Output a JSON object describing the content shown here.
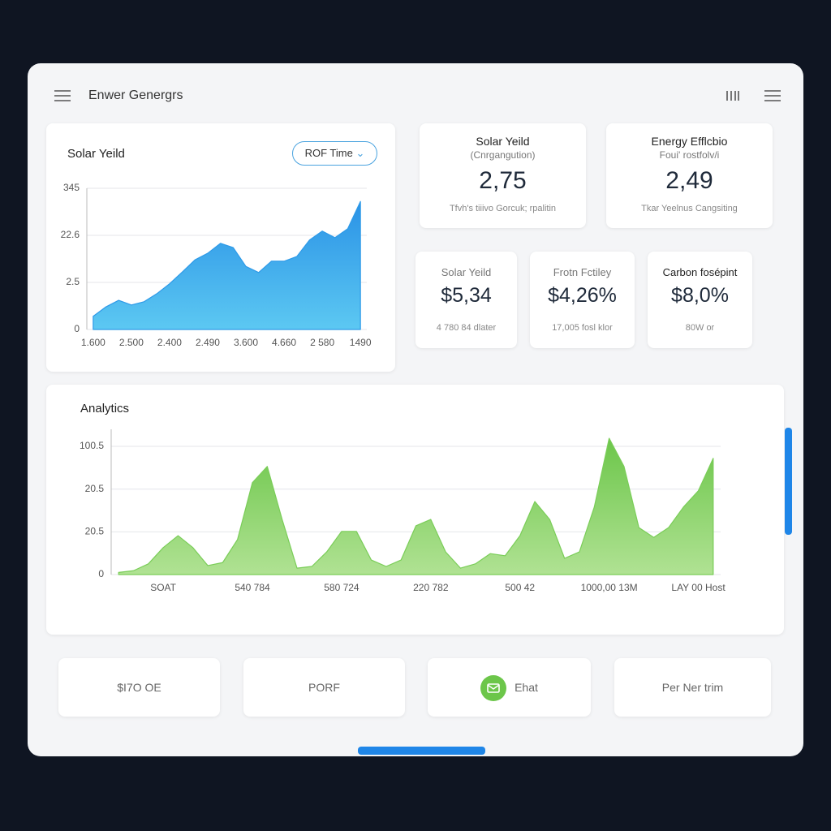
{
  "header": {
    "title": "Enwer Genergrs"
  },
  "solar": {
    "title": "Solar Yeild",
    "button": "ROF Time",
    "chart_data": {
      "type": "area",
      "color": "#2e9ae8",
      "grid": true,
      "categories": [
        "1.600",
        null,
        null,
        "2.500",
        null,
        null,
        "2.400",
        null,
        null,
        "2.490",
        null,
        null,
        "3.600",
        null,
        null,
        "4.660",
        null,
        null,
        "2 580",
        null,
        null,
        "1490"
      ],
      "values": [
        0.28,
        0.48,
        0.62,
        0.52,
        0.59,
        0.76,
        0.97,
        1.22,
        1.48,
        1.62,
        1.83,
        1.74,
        1.34,
        1.21,
        1.45,
        1.45,
        1.55,
        1.9,
        2.09,
        1.95,
        2.14,
        2.72
      ],
      "ylim": [
        0,
        3
      ],
      "yticks": [
        0,
        {
          "value": 1,
          "label": "2.5"
        },
        {
          "value": 2,
          "label": "22.6"
        },
        {
          "value": 3,
          "label": "345"
        }
      ]
    }
  },
  "stat_cards": [
    {
      "title": "Solar Yeild",
      "subtitle": "(Cnrgangution)",
      "value": "2,75",
      "note": "Tfvh's tiiivo Gorcuk; rpalitin"
    },
    {
      "title": "Energy Efflcbio",
      "subtitle": "Foui' rostfolv/i",
      "value": "2,49",
      "note": "Tkar Yeelnus Cangsiting"
    }
  ],
  "metric_cards": [
    {
      "title": "Solar Yeild",
      "value": "$5,34",
      "note": "4 780 84 dlater"
    },
    {
      "title": "Frotn Fctiley",
      "value": "$4,26%",
      "note": "17,005 fosl klor"
    },
    {
      "title": "Carbon fosépint",
      "value": "$8,0%",
      "note": "80W or"
    }
  ],
  "analytics": {
    "title": "Analytics",
    "chart_data": {
      "type": "area",
      "color": "#7acd58",
      "grid": true,
      "categories": [
        null,
        null,
        null,
        "SOAT",
        null,
        null,
        null,
        null,
        null,
        "540 784",
        null,
        null,
        null,
        null,
        null,
        "580 724",
        null,
        null,
        null,
        null,
        null,
        "220 782",
        null,
        null,
        null,
        null,
        null,
        "500 42",
        null,
        null,
        null,
        null,
        null,
        "1000,00 13M",
        null,
        null,
        null,
        null,
        null,
        "LAY 00 Host",
        null
      ],
      "values": [
        0.05,
        0.09,
        0.25,
        0.63,
        0.91,
        0.63,
        0.21,
        0.28,
        0.82,
        2.15,
        2.53,
        1.29,
        0.15,
        0.19,
        0.53,
        1.01,
        1.01,
        0.34,
        0.19,
        0.34,
        1.14,
        1.29,
        0.53,
        0.15,
        0.25,
        0.49,
        0.44,
        0.91,
        1.71,
        1.29,
        0.38,
        0.53,
        1.58,
        3.19,
        2.53,
        1.1,
        0.87,
        1.1,
        1.58,
        1.96,
        2.72
      ],
      "ylim": [
        0,
        3.4
      ],
      "yticks": [
        0,
        {
          "value": 1,
          "label": "20.5"
        },
        {
          "value": 2,
          "label": "20.5"
        },
        {
          "value": 3,
          "label": "100.5"
        }
      ]
    }
  },
  "buttons": [
    "$I7O OE",
    "PORF",
    "Ehat",
    "Per Ner trim"
  ]
}
